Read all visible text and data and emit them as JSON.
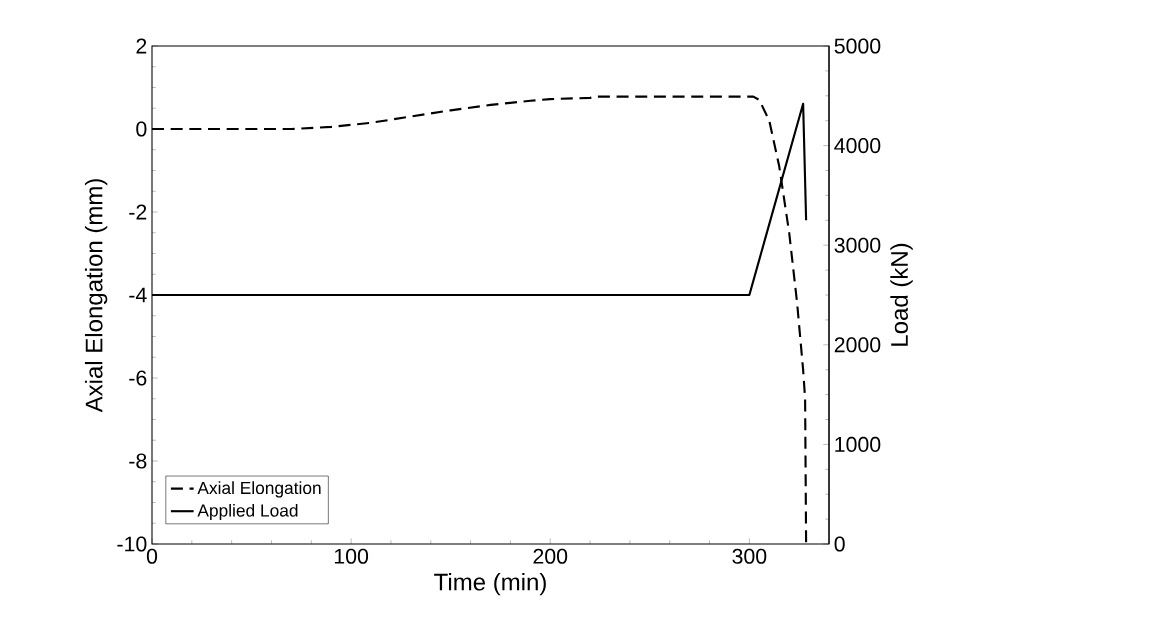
{
  "chart_data": {
    "type": "line",
    "xlabel": "Time (min)",
    "ylabel": "Axial Elongation (mm)",
    "y2label": "Load (kN)",
    "xlim": [
      0,
      340
    ],
    "xticks": [
      0,
      100,
      200,
      300
    ],
    "ylim": [
      -10,
      2
    ],
    "yticks": [
      -10,
      -8,
      -6,
      -4,
      -2,
      0,
      2
    ],
    "y2lim": [
      0,
      5000
    ],
    "y2ticks": [
      0,
      1000,
      2000,
      3000,
      4000,
      5000
    ],
    "legend": "bottom left",
    "series": [
      {
        "name": "Axial Elongation",
        "color": "#000000",
        "line_style": "dashed",
        "axis": "y",
        "x": [
          0,
          40,
          70,
          90,
          110,
          130,
          150,
          170,
          190,
          200,
          220,
          222,
          260,
          302,
          305,
          310,
          315,
          320,
          324,
          327,
          328,
          328.5
        ],
        "values": [
          0,
          0,
          0,
          0.05,
          0.15,
          0.3,
          0.45,
          0.58,
          0.68,
          0.72,
          0.75,
          0.78,
          0.78,
          0.78,
          0.7,
          0.2,
          -0.9,
          -2.5,
          -4.2,
          -5.8,
          -6.5,
          -10
        ]
      },
      {
        "name": "Applied Load",
        "color": "#000000",
        "line_style": "solid",
        "axis": "y2",
        "x": [
          0,
          300,
          327,
          328.5
        ],
        "values": [
          2500,
          2500,
          4420,
          3250
        ]
      }
    ]
  }
}
